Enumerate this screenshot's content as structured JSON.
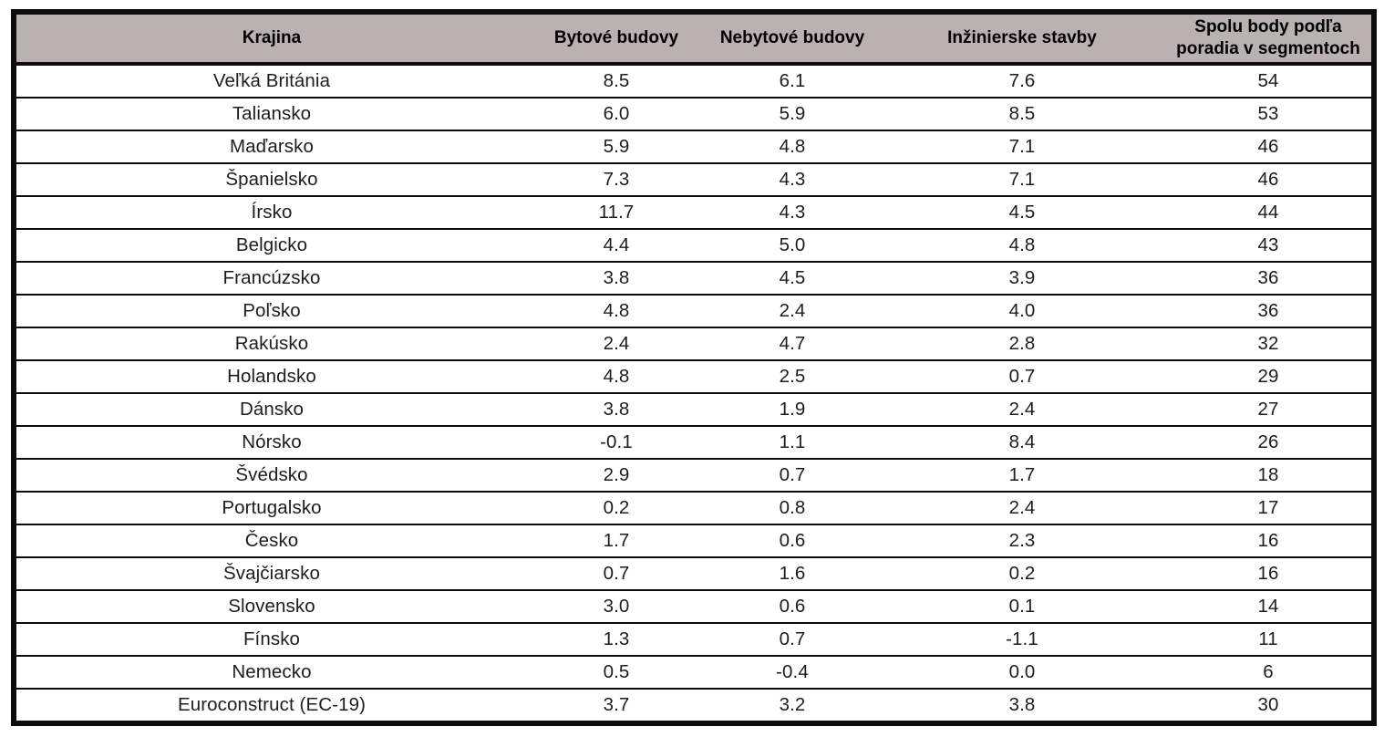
{
  "colors": {
    "header_bg": "#bab1b3",
    "border": "#0d0d0d",
    "text": "#1d1d1d"
  },
  "table": {
    "columns": [
      "Krajina",
      "Bytové budovy",
      "Nebytové budovy",
      "Inžinierske stavby",
      "Spolu body podľa poradia v segmentoch"
    ],
    "rows": [
      [
        "Veľká Británia",
        "8.5",
        "6.1",
        "7.6",
        "54"
      ],
      [
        "Taliansko",
        "6.0",
        "5.9",
        "8.5",
        "53"
      ],
      [
        "Maďarsko",
        "5.9",
        "4.8",
        "7.1",
        "46"
      ],
      [
        "Španielsko",
        "7.3",
        "4.3",
        "7.1",
        "46"
      ],
      [
        "Írsko",
        "11.7",
        "4.3",
        "4.5",
        "44"
      ],
      [
        "Belgicko",
        "4.4",
        "5.0",
        "4.8",
        "43"
      ],
      [
        "Francúzsko",
        "3.8",
        "4.5",
        "3.9",
        "36"
      ],
      [
        "Poľsko",
        "4.8",
        "2.4",
        "4.0",
        "36"
      ],
      [
        "Rakúsko",
        "2.4",
        "4.7",
        "2.8",
        "32"
      ],
      [
        "Holandsko",
        "4.8",
        "2.5",
        "0.7",
        "29"
      ],
      [
        "Dánsko",
        "3.8",
        "1.9",
        "2.4",
        "27"
      ],
      [
        "Nórsko",
        "-0.1",
        "1.1",
        "8.4",
        "26"
      ],
      [
        "Švédsko",
        "2.9",
        "0.7",
        "1.7",
        "18"
      ],
      [
        "Portugalsko",
        "0.2",
        "0.8",
        "2.4",
        "17"
      ],
      [
        "Česko",
        "1.7",
        "0.6",
        "2.3",
        "16"
      ],
      [
        "Švajčiarsko",
        "0.7",
        "1.6",
        "0.2",
        "16"
      ],
      [
        "Slovensko",
        "3.0",
        "0.6",
        "0.1",
        "14"
      ],
      [
        "Fínsko",
        "1.3",
        "0.7",
        "-1.1",
        "11"
      ],
      [
        "Nemecko",
        "0.5",
        "-0.4",
        "0.0",
        "6"
      ],
      [
        "Euroconstruct (EC-19)",
        "3.7",
        "3.2",
        "3.8",
        "30"
      ]
    ]
  }
}
